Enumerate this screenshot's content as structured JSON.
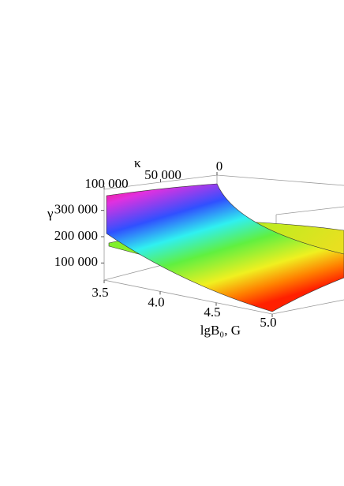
{
  "chart_data": {
    "type": "surface3d",
    "xlabel": "lgB₀, G",
    "ylabel": "κ",
    "zlabel": "γ",
    "xlim": [
      3.5,
      5.0
    ],
    "xticks": [
      3.5,
      {
        "value": 4,
        "label": "4.0"
      },
      4.5,
      {
        "value": 5,
        "label": "5.0"
      }
    ],
    "ylim": [
      0,
      100000
    ],
    "yticks": [
      0,
      {
        "value": 50000,
        "label": "50 000"
      },
      {
        "value": 100000,
        "label": "100 000"
      }
    ],
    "zlim": [
      50000,
      380000
    ],
    "zticks": [
      {
        "value": 100000,
        "label": "100 000"
      },
      {
        "value": 200000,
        "label": "200 000"
      },
      {
        "value": 300000,
        "label": "300 000"
      }
    ]
  }
}
